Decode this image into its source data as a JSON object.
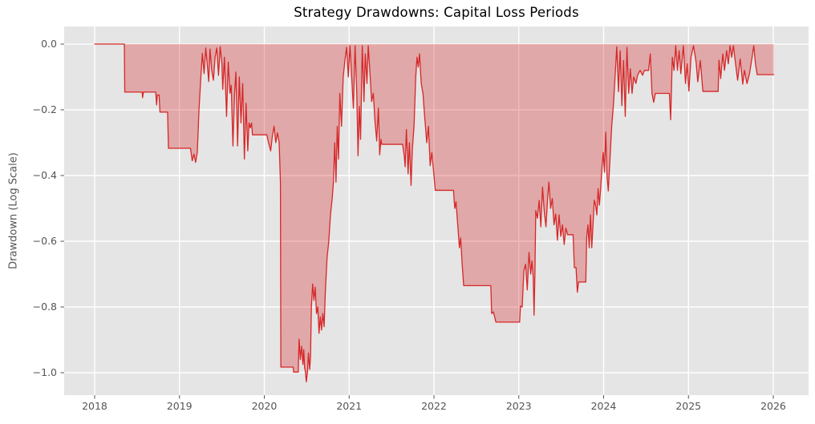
{
  "chart_data": {
    "type": "area",
    "title": "Strategy Drawdowns: Capital Loss Periods",
    "xlabel": "",
    "ylabel": "Drawdown (Log Scale)",
    "xlim": [
      2017.6407,
      2026.4161
    ],
    "ylim": [
      -1.0683,
      0.0537
    ],
    "grid": true,
    "legend": "none",
    "colors": {
      "line": "#d62728",
      "fill": "rgba(214,39,40,0.32)",
      "plot_bg": "#e5e5e5",
      "grid": "#ffffff",
      "tick_text": "#555555",
      "title_text": "#000000",
      "figure_bg": "#ffffff"
    },
    "x_ticks": [
      {
        "value": 2018,
        "label": "2018"
      },
      {
        "value": 2019,
        "label": "2019"
      },
      {
        "value": 2020,
        "label": "2020"
      },
      {
        "value": 2021,
        "label": "2021"
      },
      {
        "value": 2022,
        "label": "2022"
      },
      {
        "value": 2023,
        "label": "2023"
      },
      {
        "value": 2024,
        "label": "2024"
      },
      {
        "value": 2025,
        "label": "2025"
      },
      {
        "value": 2026,
        "label": "2026"
      }
    ],
    "y_ticks": [
      {
        "value": 0.0,
        "label": "0.0"
      },
      {
        "value": -0.2,
        "label": "−0.2"
      },
      {
        "value": -0.4,
        "label": "−0.4"
      },
      {
        "value": -0.6,
        "label": "−0.6"
      },
      {
        "value": -0.8,
        "label": "−0.8"
      },
      {
        "value": -1.0,
        "label": "−1.0"
      }
    ],
    "points": [
      [
        2018.0,
        0.0
      ],
      [
        2018.35,
        0.0
      ],
      [
        2018.355,
        -0.146
      ],
      [
        2018.56,
        -0.146
      ],
      [
        2018.565,
        -0.163
      ],
      [
        2018.575,
        -0.146
      ],
      [
        2018.72,
        -0.146
      ],
      [
        2018.73,
        -0.185
      ],
      [
        2018.74,
        -0.155
      ],
      [
        2018.76,
        -0.155
      ],
      [
        2018.77,
        -0.207
      ],
      [
        2018.86,
        -0.207
      ],
      [
        2018.87,
        -0.317
      ],
      [
        2019.13,
        -0.317
      ],
      [
        2019.15,
        -0.355
      ],
      [
        2019.17,
        -0.335
      ],
      [
        2019.19,
        -0.36
      ],
      [
        2019.21,
        -0.33
      ],
      [
        2019.23,
        -0.2
      ],
      [
        2019.25,
        -0.11
      ],
      [
        2019.27,
        -0.028
      ],
      [
        2019.29,
        -0.09
      ],
      [
        2019.31,
        -0.012
      ],
      [
        2019.33,
        -0.07
      ],
      [
        2019.345,
        -0.114
      ],
      [
        2019.36,
        -0.015
      ],
      [
        2019.38,
        -0.08
      ],
      [
        2019.4,
        -0.11
      ],
      [
        2019.42,
        -0.04
      ],
      [
        2019.44,
        -0.012
      ],
      [
        2019.46,
        -0.095
      ],
      [
        2019.48,
        -0.008
      ],
      [
        2019.5,
        -0.06
      ],
      [
        2019.51,
        -0.138
      ],
      [
        2019.53,
        -0.04
      ],
      [
        2019.555,
        -0.22
      ],
      [
        2019.575,
        -0.055
      ],
      [
        2019.595,
        -0.15
      ],
      [
        2019.61,
        -0.125
      ],
      [
        2019.63,
        -0.31
      ],
      [
        2019.65,
        -0.15
      ],
      [
        2019.665,
        -0.085
      ],
      [
        2019.685,
        -0.31
      ],
      [
        2019.705,
        -0.1
      ],
      [
        2019.725,
        -0.24
      ],
      [
        2019.745,
        -0.12
      ],
      [
        2019.765,
        -0.35
      ],
      [
        2019.785,
        -0.18
      ],
      [
        2019.805,
        -0.325
      ],
      [
        2019.82,
        -0.24
      ],
      [
        2019.835,
        -0.255
      ],
      [
        2019.85,
        -0.24
      ],
      [
        2019.86,
        -0.276
      ],
      [
        2020.03,
        -0.276
      ],
      [
        2020.05,
        -0.3
      ],
      [
        2020.075,
        -0.325
      ],
      [
        2020.095,
        -0.28
      ],
      [
        2020.115,
        -0.25
      ],
      [
        2020.135,
        -0.3
      ],
      [
        2020.155,
        -0.27
      ],
      [
        2020.175,
        -0.3
      ],
      [
        2020.185,
        -0.38
      ],
      [
        2020.19,
        -0.42
      ],
      [
        2020.195,
        -0.983
      ],
      [
        2020.34,
        -0.983
      ],
      [
        2020.345,
        -0.998
      ],
      [
        2020.4,
        -0.998
      ],
      [
        2020.41,
        -0.898
      ],
      [
        2020.425,
        -0.96
      ],
      [
        2020.44,
        -0.92
      ],
      [
        2020.455,
        -0.975
      ],
      [
        2020.465,
        -0.93
      ],
      [
        2020.475,
        -0.985
      ],
      [
        2020.485,
        -0.998
      ],
      [
        2020.495,
        -1.028
      ],
      [
        2020.51,
        -0.995
      ],
      [
        2020.52,
        -0.94
      ],
      [
        2020.535,
        -0.99
      ],
      [
        2020.545,
        -0.95
      ],
      [
        2020.555,
        -0.8
      ],
      [
        2020.57,
        -0.73
      ],
      [
        2020.585,
        -0.78
      ],
      [
        2020.6,
        -0.74
      ],
      [
        2020.615,
        -0.82
      ],
      [
        2020.63,
        -0.8
      ],
      [
        2020.645,
        -0.88
      ],
      [
        2020.66,
        -0.83
      ],
      [
        2020.675,
        -0.87
      ],
      [
        2020.69,
        -0.82
      ],
      [
        2020.705,
        -0.86
      ],
      [
        2020.72,
        -0.75
      ],
      [
        2020.74,
        -0.65
      ],
      [
        2020.76,
        -0.6
      ],
      [
        2020.78,
        -0.52
      ],
      [
        2020.8,
        -0.47
      ],
      [
        2020.815,
        -0.42
      ],
      [
        2020.83,
        -0.3
      ],
      [
        2020.845,
        -0.42
      ],
      [
        2020.86,
        -0.25
      ],
      [
        2020.875,
        -0.35
      ],
      [
        2020.89,
        -0.15
      ],
      [
        2020.91,
        -0.25
      ],
      [
        2020.93,
        -0.1
      ],
      [
        2020.95,
        -0.05
      ],
      [
        2020.97,
        -0.01
      ],
      [
        2020.99,
        -0.1
      ],
      [
        2021.01,
        -0.005
      ],
      [
        2021.03,
        -0.1
      ],
      [
        2021.05,
        -0.195
      ],
      [
        2021.07,
        -0.005
      ],
      [
        2021.09,
        -0.15
      ],
      [
        2021.105,
        -0.34
      ],
      [
        2021.12,
        -0.19
      ],
      [
        2021.135,
        -0.29
      ],
      [
        2021.155,
        -0.005
      ],
      [
        2021.175,
        -0.175
      ],
      [
        2021.19,
        -0.03
      ],
      [
        2021.21,
        -0.12
      ],
      [
        2021.225,
        -0.005
      ],
      [
        2021.245,
        -0.086
      ],
      [
        2021.265,
        -0.175
      ],
      [
        2021.285,
        -0.15
      ],
      [
        2021.305,
        -0.236
      ],
      [
        2021.325,
        -0.295
      ],
      [
        2021.345,
        -0.195
      ],
      [
        2021.36,
        -0.337
      ],
      [
        2021.375,
        -0.29
      ],
      [
        2021.385,
        -0.305
      ],
      [
        2021.63,
        -0.305
      ],
      [
        2021.65,
        -0.34
      ],
      [
        2021.66,
        -0.373
      ],
      [
        2021.675,
        -0.26
      ],
      [
        2021.695,
        -0.395
      ],
      [
        2021.71,
        -0.3
      ],
      [
        2021.73,
        -0.43
      ],
      [
        2021.745,
        -0.32
      ],
      [
        2021.765,
        -0.25
      ],
      [
        2021.785,
        -0.1
      ],
      [
        2021.8,
        -0.04
      ],
      [
        2021.815,
        -0.07
      ],
      [
        2021.83,
        -0.03
      ],
      [
        2021.85,
        -0.12
      ],
      [
        2021.87,
        -0.15
      ],
      [
        2021.89,
        -0.22
      ],
      [
        2021.915,
        -0.3
      ],
      [
        2021.935,
        -0.25
      ],
      [
        2021.955,
        -0.37
      ],
      [
        2021.975,
        -0.33
      ],
      [
        2022.0,
        -0.4
      ],
      [
        2022.015,
        -0.445
      ],
      [
        2022.23,
        -0.445
      ],
      [
        2022.245,
        -0.5
      ],
      [
        2022.26,
        -0.48
      ],
      [
        2022.28,
        -0.55
      ],
      [
        2022.3,
        -0.62
      ],
      [
        2022.315,
        -0.59
      ],
      [
        2022.33,
        -0.66
      ],
      [
        2022.35,
        -0.735
      ],
      [
        2022.67,
        -0.735
      ],
      [
        2022.68,
        -0.82
      ],
      [
        2022.7,
        -0.815
      ],
      [
        2022.715,
        -0.83
      ],
      [
        2022.73,
        -0.846
      ],
      [
        2023.01,
        -0.846
      ],
      [
        2023.02,
        -0.797
      ],
      [
        2023.04,
        -0.8
      ],
      [
        2023.06,
        -0.69
      ],
      [
        2023.08,
        -0.67
      ],
      [
        2023.1,
        -0.748
      ],
      [
        2023.12,
        -0.634
      ],
      [
        2023.14,
        -0.7
      ],
      [
        2023.155,
        -0.66
      ],
      [
        2023.17,
        -0.71
      ],
      [
        2023.18,
        -0.825
      ],
      [
        2023.19,
        -0.7
      ],
      [
        2023.2,
        -0.507
      ],
      [
        2023.22,
        -0.53
      ],
      [
        2023.24,
        -0.476
      ],
      [
        2023.26,
        -0.556
      ],
      [
        2023.28,
        -0.435
      ],
      [
        2023.3,
        -0.51
      ],
      [
        2023.32,
        -0.556
      ],
      [
        2023.34,
        -0.47
      ],
      [
        2023.355,
        -0.42
      ],
      [
        2023.375,
        -0.5
      ],
      [
        2023.395,
        -0.47
      ],
      [
        2023.415,
        -0.55
      ],
      [
        2023.435,
        -0.517
      ],
      [
        2023.455,
        -0.597
      ],
      [
        2023.475,
        -0.52
      ],
      [
        2023.495,
        -0.585
      ],
      [
        2023.515,
        -0.55
      ],
      [
        2023.535,
        -0.61
      ],
      [
        2023.555,
        -0.56
      ],
      [
        2023.575,
        -0.58
      ],
      [
        2023.64,
        -0.58
      ],
      [
        2023.655,
        -0.68
      ],
      [
        2023.675,
        -0.68
      ],
      [
        2023.69,
        -0.755
      ],
      [
        2023.705,
        -0.724
      ],
      [
        2023.79,
        -0.724
      ],
      [
        2023.8,
        -0.59
      ],
      [
        2023.815,
        -0.55
      ],
      [
        2023.83,
        -0.62
      ],
      [
        2023.845,
        -0.52
      ],
      [
        2023.86,
        -0.62
      ],
      [
        2023.875,
        -0.55
      ],
      [
        2023.89,
        -0.475
      ],
      [
        2023.905,
        -0.49
      ],
      [
        2023.92,
        -0.52
      ],
      [
        2023.935,
        -0.44
      ],
      [
        2023.95,
        -0.49
      ],
      [
        2023.965,
        -0.44
      ],
      [
        2023.98,
        -0.378
      ],
      [
        2023.995,
        -0.33
      ],
      [
        2024.01,
        -0.39
      ],
      [
        2024.025,
        -0.268
      ],
      [
        2024.04,
        -0.4
      ],
      [
        2024.055,
        -0.447
      ],
      [
        2024.075,
        -0.35
      ],
      [
        2024.095,
        -0.25
      ],
      [
        2024.115,
        -0.187
      ],
      [
        2024.135,
        -0.1
      ],
      [
        2024.155,
        -0.008
      ],
      [
        2024.175,
        -0.145
      ],
      [
        2024.195,
        -0.02
      ],
      [
        2024.215,
        -0.187
      ],
      [
        2024.235,
        -0.05
      ],
      [
        2024.255,
        -0.22
      ],
      [
        2024.275,
        -0.01
      ],
      [
        2024.295,
        -0.15
      ],
      [
        2024.315,
        -0.075
      ],
      [
        2024.335,
        -0.15
      ],
      [
        2024.355,
        -0.1
      ],
      [
        2024.38,
        -0.12
      ],
      [
        2024.4,
        -0.095
      ],
      [
        2024.43,
        -0.08
      ],
      [
        2024.46,
        -0.095
      ],
      [
        2024.48,
        -0.08
      ],
      [
        2024.53,
        -0.08
      ],
      [
        2024.55,
        -0.03
      ],
      [
        2024.57,
        -0.15
      ],
      [
        2024.59,
        -0.177
      ],
      [
        2024.61,
        -0.15
      ],
      [
        2024.775,
        -0.15
      ],
      [
        2024.79,
        -0.23
      ],
      [
        2024.81,
        -0.04
      ],
      [
        2024.83,
        -0.08
      ],
      [
        2024.85,
        -0.005
      ],
      [
        2024.87,
        -0.08
      ],
      [
        2024.89,
        -0.02
      ],
      [
        2024.91,
        -0.09
      ],
      [
        2024.94,
        -0.005
      ],
      [
        2024.965,
        -0.12
      ],
      [
        2024.985,
        -0.06
      ],
      [
        2025.005,
        -0.143
      ],
      [
        2025.03,
        -0.04
      ],
      [
        2025.06,
        -0.005
      ],
      [
        2025.09,
        -0.055
      ],
      [
        2025.11,
        -0.115
      ],
      [
        2025.14,
        -0.05
      ],
      [
        2025.17,
        -0.144
      ],
      [
        2025.35,
        -0.144
      ],
      [
        2025.36,
        -0.049
      ],
      [
        2025.38,
        -0.105
      ],
      [
        2025.405,
        -0.03
      ],
      [
        2025.425,
        -0.08
      ],
      [
        2025.45,
        -0.02
      ],
      [
        2025.47,
        -0.06
      ],
      [
        2025.49,
        -0.005
      ],
      [
        2025.51,
        -0.04
      ],
      [
        2025.53,
        -0.005
      ],
      [
        2025.56,
        -0.07
      ],
      [
        2025.58,
        -0.11
      ],
      [
        2025.61,
        -0.045
      ],
      [
        2025.64,
        -0.122
      ],
      [
        2025.66,
        -0.08
      ],
      [
        2025.69,
        -0.12
      ],
      [
        2025.72,
        -0.09
      ],
      [
        2025.75,
        -0.04
      ],
      [
        2025.77,
        -0.005
      ],
      [
        2025.79,
        -0.06
      ],
      [
        2025.81,
        -0.093
      ],
      [
        2026.005,
        -0.093
      ]
    ]
  }
}
